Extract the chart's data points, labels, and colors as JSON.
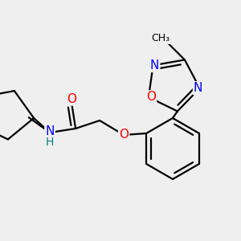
{
  "bg_color": "#efefef",
  "bond_color": "#000000",
  "bond_width": 1.6,
  "atom_colors": {
    "O": "#ff0000",
    "N": "#0000ff",
    "H": "#008080",
    "C": "#000000"
  },
  "font_size": 10,
  "fig_width": 3.0,
  "fig_height": 3.0,
  "dpi": 100
}
